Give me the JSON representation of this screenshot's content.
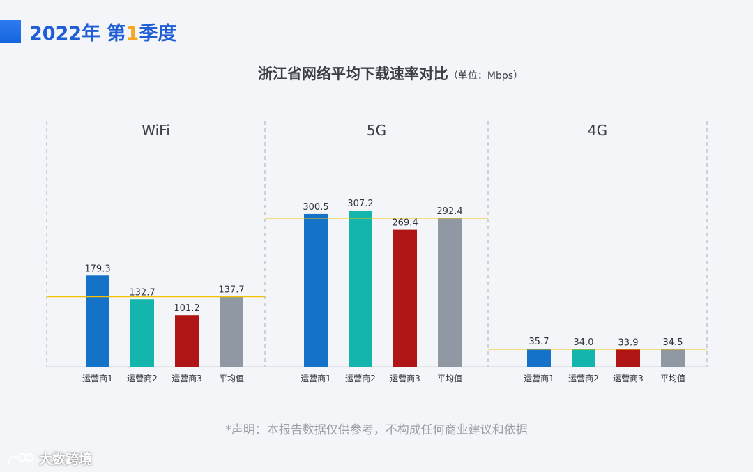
{
  "header": {
    "year_text": "2022年 第",
    "quarter_num": "1",
    "quarter_suffix": "季度"
  },
  "footer": {
    "disclaimer": "*声明：本报告数据仅供参考，不构成任何商业建议和依据",
    "brand": "大数跨境"
  },
  "colors": {
    "operator1": "#1472c9",
    "operator2": "#14b5ac",
    "operator3": "#b01515",
    "average": "#8f98a3",
    "average_line": "#f2c200",
    "heading": "#1f5ed6",
    "accent": "#f5a623"
  },
  "chart_data": {
    "type": "bar",
    "title": "浙江省网络平均下载速率对比",
    "unit": "（单位：Mbps）",
    "categories": [
      "运营商1",
      "运营商2",
      "运营商3",
      "平均值"
    ],
    "groups": [
      {
        "name": "WiFi",
        "values": [
          179.3,
          132.7,
          101.2,
          137.7
        ]
      },
      {
        "name": "5G",
        "values": [
          300.5,
          307.2,
          269.4,
          292.4
        ]
      },
      {
        "name": "4G",
        "values": [
          35.7,
          34.0,
          33.9,
          34.5
        ]
      }
    ],
    "ylim": [
      0,
      310
    ],
    "average_reference_line": true,
    "grid": false,
    "legend": "none"
  }
}
